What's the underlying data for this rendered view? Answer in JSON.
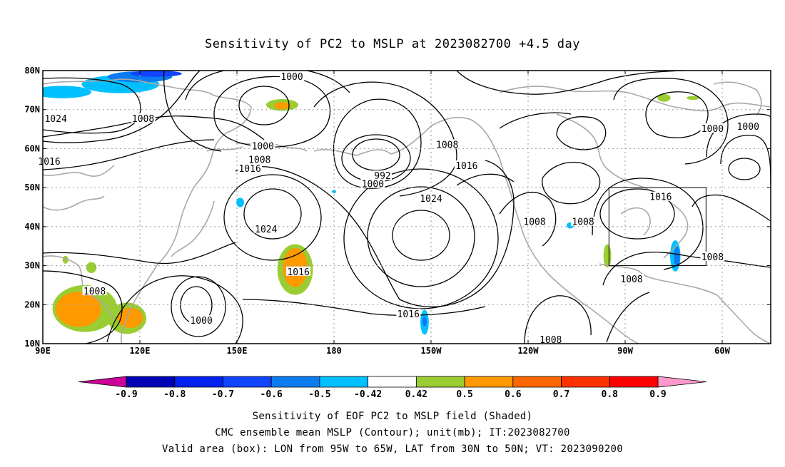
{
  "title": "Sensitivity of PC2 to MSLP at 2023082700 +4.5 day",
  "axes": {
    "lat_labels": [
      "80N",
      "70N",
      "60N",
      "50N",
      "40N",
      "30N",
      "20N",
      "10N"
    ],
    "lon_labels": [
      "90E",
      "120E",
      "150E",
      "180",
      "150W",
      "120W",
      "90W",
      "60W"
    ],
    "lat_range": [
      10,
      80
    ],
    "lon_range": [
      90,
      315
    ]
  },
  "valid_box": {
    "lon": [
      265,
      295
    ],
    "lat": [
      30,
      50
    ]
  },
  "contour_labels": [
    {
      "text": "1000",
      "lon": 167,
      "lat": 78.5
    },
    {
      "text": "1024",
      "lon": 94,
      "lat": 67.8
    },
    {
      "text": "1008",
      "lon": 121,
      "lat": 67.8
    },
    {
      "text": "1016",
      "lon": 92,
      "lat": 56.8
    },
    {
      "text": "1000",
      "lon": 158,
      "lat": 60.7
    },
    {
      "text": "1008",
      "lon": 157,
      "lat": 57.2
    },
    {
      "text": "1016",
      "lon": 154,
      "lat": 55.0
    },
    {
      "text": "992",
      "lon": 195,
      "lat": 53.1
    },
    {
      "text": "1000",
      "lon": 192,
      "lat": 51.0
    },
    {
      "text": "1008",
      "lon": 215,
      "lat": 61.1
    },
    {
      "text": "1016",
      "lon": 221,
      "lat": 55.7
    },
    {
      "text": "1024",
      "lon": 159,
      "lat": 39.4
    },
    {
      "text": "1024",
      "lon": 210,
      "lat": 47.3
    },
    {
      "text": "1016",
      "lon": 169,
      "lat": 28.5
    },
    {
      "text": "1008",
      "lon": 106,
      "lat": 23.5
    },
    {
      "text": "1000",
      "lon": 139,
      "lat": 16.0
    },
    {
      "text": "1016",
      "lon": 203,
      "lat": 17.7
    },
    {
      "text": "1008",
      "lon": 242,
      "lat": 41.3
    },
    {
      "text": "1008",
      "lon": 257,
      "lat": 41.3
    },
    {
      "text": "1016",
      "lon": 281,
      "lat": 47.7
    },
    {
      "text": "1000",
      "lon": 297,
      "lat": 65.2
    },
    {
      "text": "1000",
      "lon": 308,
      "lat": 65.7
    },
    {
      "text": "1008",
      "lon": 297,
      "lat": 32.3
    },
    {
      "text": "1008",
      "lon": 272,
      "lat": 26.6
    },
    {
      "text": "1008",
      "lon": 247,
      "lat": 11.1
    }
  ],
  "colorbar": {
    "labels": [
      "-0.9",
      "-0.8",
      "-0.7",
      "-0.6",
      "-0.5",
      "-0.42",
      "0.42",
      "0.5",
      "0.6",
      "0.7",
      "0.8",
      "0.9"
    ],
    "under_color": "#cc0099",
    "over_color": "#ff99cc",
    "colors": [
      "#0000b4",
      "#0022ee",
      "#1144ff",
      "#0a7cf0",
      "#00c0ff",
      "#ffffff",
      "#9acd32",
      "#ff9900",
      "#ff6600",
      "#ff3300",
      "#ff0000"
    ]
  },
  "shading": [
    {
      "color": "#00c0ff",
      "lon": 96,
      "lat": 74.5,
      "rx": 9,
      "ry": 1.6
    },
    {
      "color": "#00c0ff",
      "lon": 114,
      "lat": 76.5,
      "rx": 12,
      "ry": 2.3
    },
    {
      "color": "#0a7cf0",
      "lon": 120,
      "lat": 78.4,
      "rx": 10,
      "ry": 1.4
    },
    {
      "color": "#1144ff",
      "lon": 125,
      "lat": 79.2,
      "rx": 8,
      "ry": 0.8
    },
    {
      "color": "#9acd32",
      "lon": 164,
      "lat": 71.2,
      "rx": 5,
      "ry": 1.5
    },
    {
      "color": "#ff9900",
      "lon": 164,
      "lat": 71.0,
      "rx": 2.5,
      "ry": 0.9
    },
    {
      "color": "#9acd32",
      "lon": 168,
      "lat": 29.0,
      "rx": 5.5,
      "ry": 6.5
    },
    {
      "color": "#ff9900",
      "lon": 168,
      "lat": 29.5,
      "rx": 3.8,
      "ry": 5.0
    },
    {
      "color": "#00c0ff",
      "lon": 151,
      "lat": 46.2,
      "rx": 1.2,
      "ry": 1.2
    },
    {
      "color": "#9acd32",
      "lon": 103,
      "lat": 19.0,
      "rx": 10,
      "ry": 6
    },
    {
      "color": "#ff9900",
      "lon": 101,
      "lat": 18.8,
      "rx": 7,
      "ry": 4.5
    },
    {
      "color": "#9acd32",
      "lon": 116,
      "lat": 16.5,
      "rx": 6,
      "ry": 4
    },
    {
      "color": "#ff9900",
      "lon": 117,
      "lat": 16.6,
      "rx": 4,
      "ry": 2.6
    },
    {
      "color": "#9acd32",
      "lon": 105,
      "lat": 29.5,
      "rx": 1.6,
      "ry": 1.4
    },
    {
      "color": "#9acd32",
      "lon": 97,
      "lat": 31.5,
      "rx": 0.9,
      "ry": 1.0
    },
    {
      "color": "#00c0ff",
      "lon": 208,
      "lat": 15.5,
      "rx": 1.3,
      "ry": 3.2
    },
    {
      "color": "#0a7cf0",
      "lon": 208,
      "lat": 15.7,
      "rx": 0.7,
      "ry": 1.2
    },
    {
      "color": "#00c0ff",
      "lon": 253,
      "lat": 40.3,
      "rx": 1.1,
      "ry": 0.8
    },
    {
      "color": "#9acd32",
      "lon": 264.5,
      "lat": 32.5,
      "rx": 1.2,
      "ry": 3.0
    },
    {
      "color": "#00c0ff",
      "lon": 285.5,
      "lat": 32.5,
      "rx": 1.6,
      "ry": 4.0
    },
    {
      "color": "#0a7cf0",
      "lon": 286,
      "lat": 32.3,
      "rx": 0.9,
      "ry": 2.6
    },
    {
      "color": "#9acd32",
      "lon": 282,
      "lat": 73.0,
      "rx": 2.0,
      "ry": 1.0
    },
    {
      "color": "#9acd32",
      "lon": 291,
      "lat": 73.0,
      "rx": 2.0,
      "ry": 0.5
    },
    {
      "color": "#00c0ff",
      "lon": 180,
      "lat": 49.0,
      "rx": 0.7,
      "ry": 0.4
    }
  ],
  "footer": {
    "line1": "Sensitivity of EOF PC2 to MSLP field (Shaded)",
    "line2": "CMC ensemble mean MSLP (Contour); unit(mb); IT:2023082700",
    "line3": "Valid area (box): LON from 95W to 65W, LAT from 30N to 50N; VT: 2023090200"
  }
}
